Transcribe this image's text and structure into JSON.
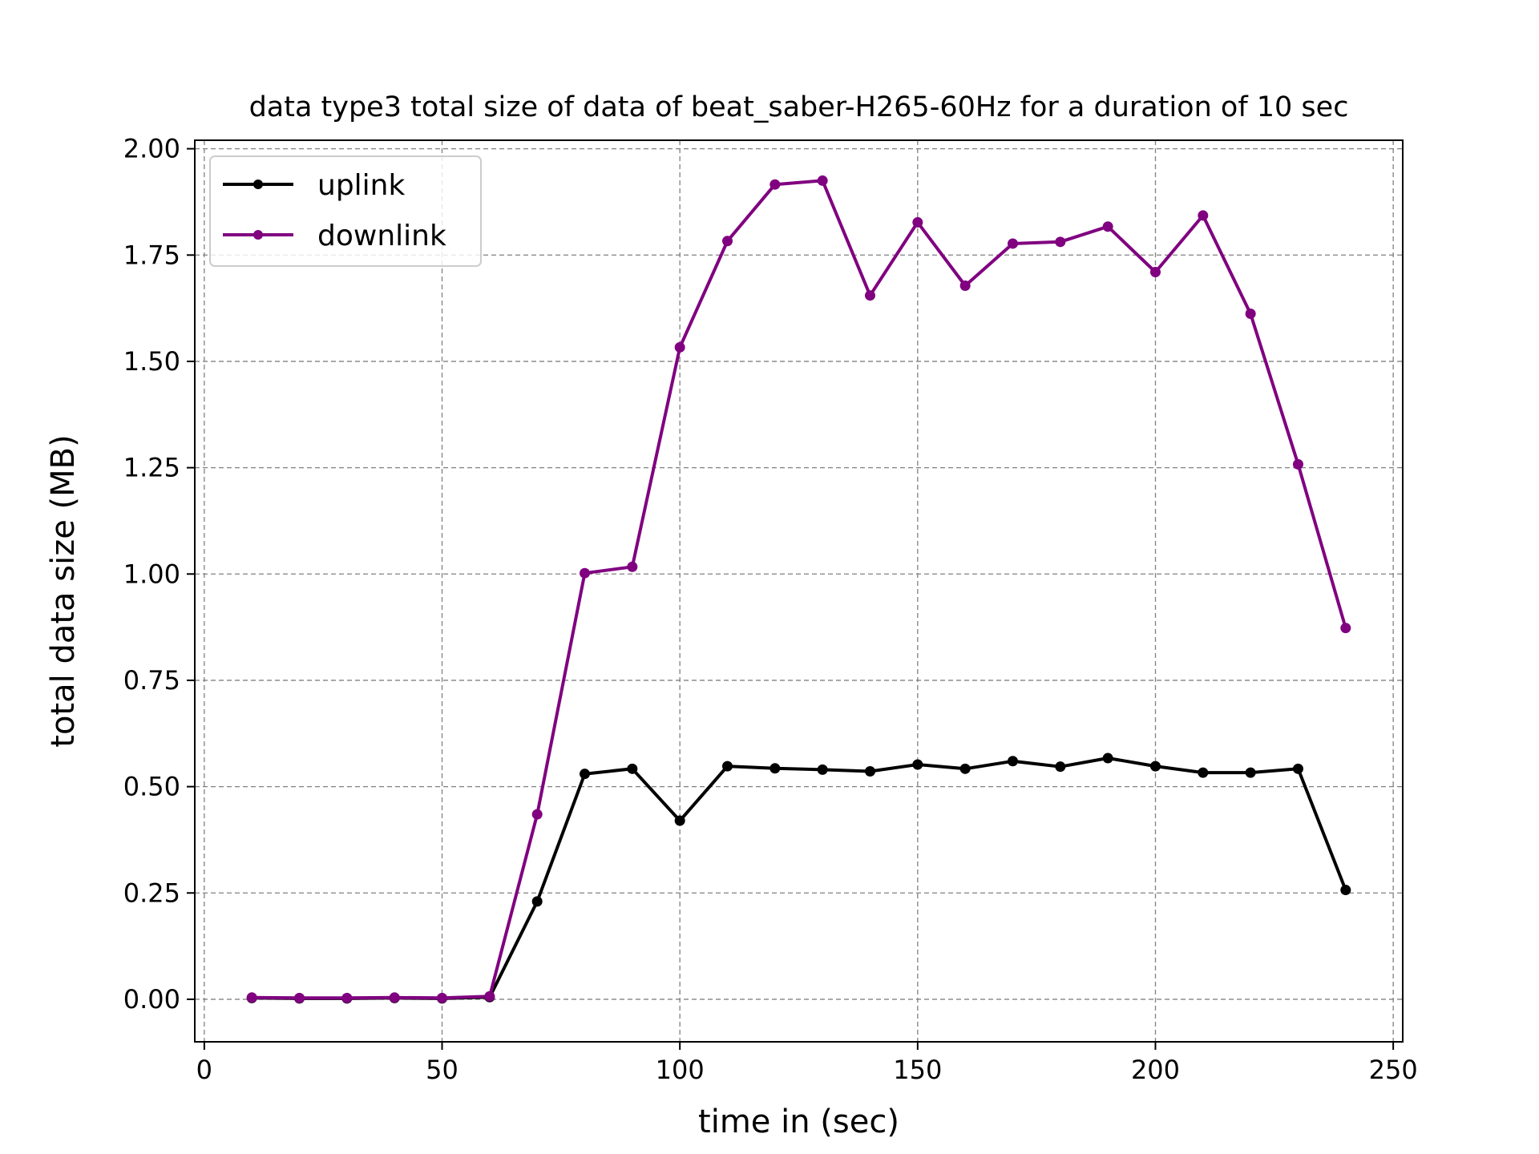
{
  "chart_data": {
    "type": "line",
    "title": "data type3 total size of data of beat_saber-H265-60Hz for a duration of 10 sec",
    "xlabel": "time in (sec)",
    "ylabel": "total data size (MB)",
    "xlim": [
      -2,
      252
    ],
    "ylim": [
      -0.1,
      2.02
    ],
    "xticks": [
      0,
      50,
      100,
      150,
      200,
      250
    ],
    "yticks": [
      0.0,
      0.25,
      0.5,
      0.75,
      1.0,
      1.25,
      1.5,
      1.75,
      2.0
    ],
    "xtick_labels": [
      "0",
      "50",
      "100",
      "150",
      "200",
      "250"
    ],
    "ytick_labels": [
      "0.00",
      "0.25",
      "0.50",
      "0.75",
      "1.00",
      "1.25",
      "1.50",
      "1.75",
      "2.00"
    ],
    "grid": true,
    "legend_position": "top-left",
    "x": [
      10,
      20,
      30,
      40,
      50,
      60,
      70,
      80,
      90,
      100,
      110,
      120,
      130,
      140,
      150,
      160,
      170,
      180,
      190,
      200,
      210,
      220,
      230,
      240
    ],
    "series": [
      {
        "name": "uplink",
        "color": "#000000",
        "values": [
          0.003,
          0.002,
          0.002,
          0.003,
          0.002,
          0.005,
          0.23,
          0.53,
          0.542,
          0.42,
          0.548,
          0.543,
          0.54,
          0.536,
          0.552,
          0.542,
          0.56,
          0.547,
          0.567,
          0.548,
          0.533,
          0.533,
          0.542,
          0.257
        ]
      },
      {
        "name": "downlink",
        "color": "#800080",
        "values": [
          0.004,
          0.003,
          0.003,
          0.004,
          0.003,
          0.007,
          0.435,
          1.002,
          1.017,
          1.533,
          1.783,
          1.916,
          1.925,
          1.655,
          1.827,
          1.678,
          1.777,
          1.781,
          1.817,
          1.71,
          1.843,
          1.612,
          1.258,
          0.873
        ]
      }
    ]
  }
}
